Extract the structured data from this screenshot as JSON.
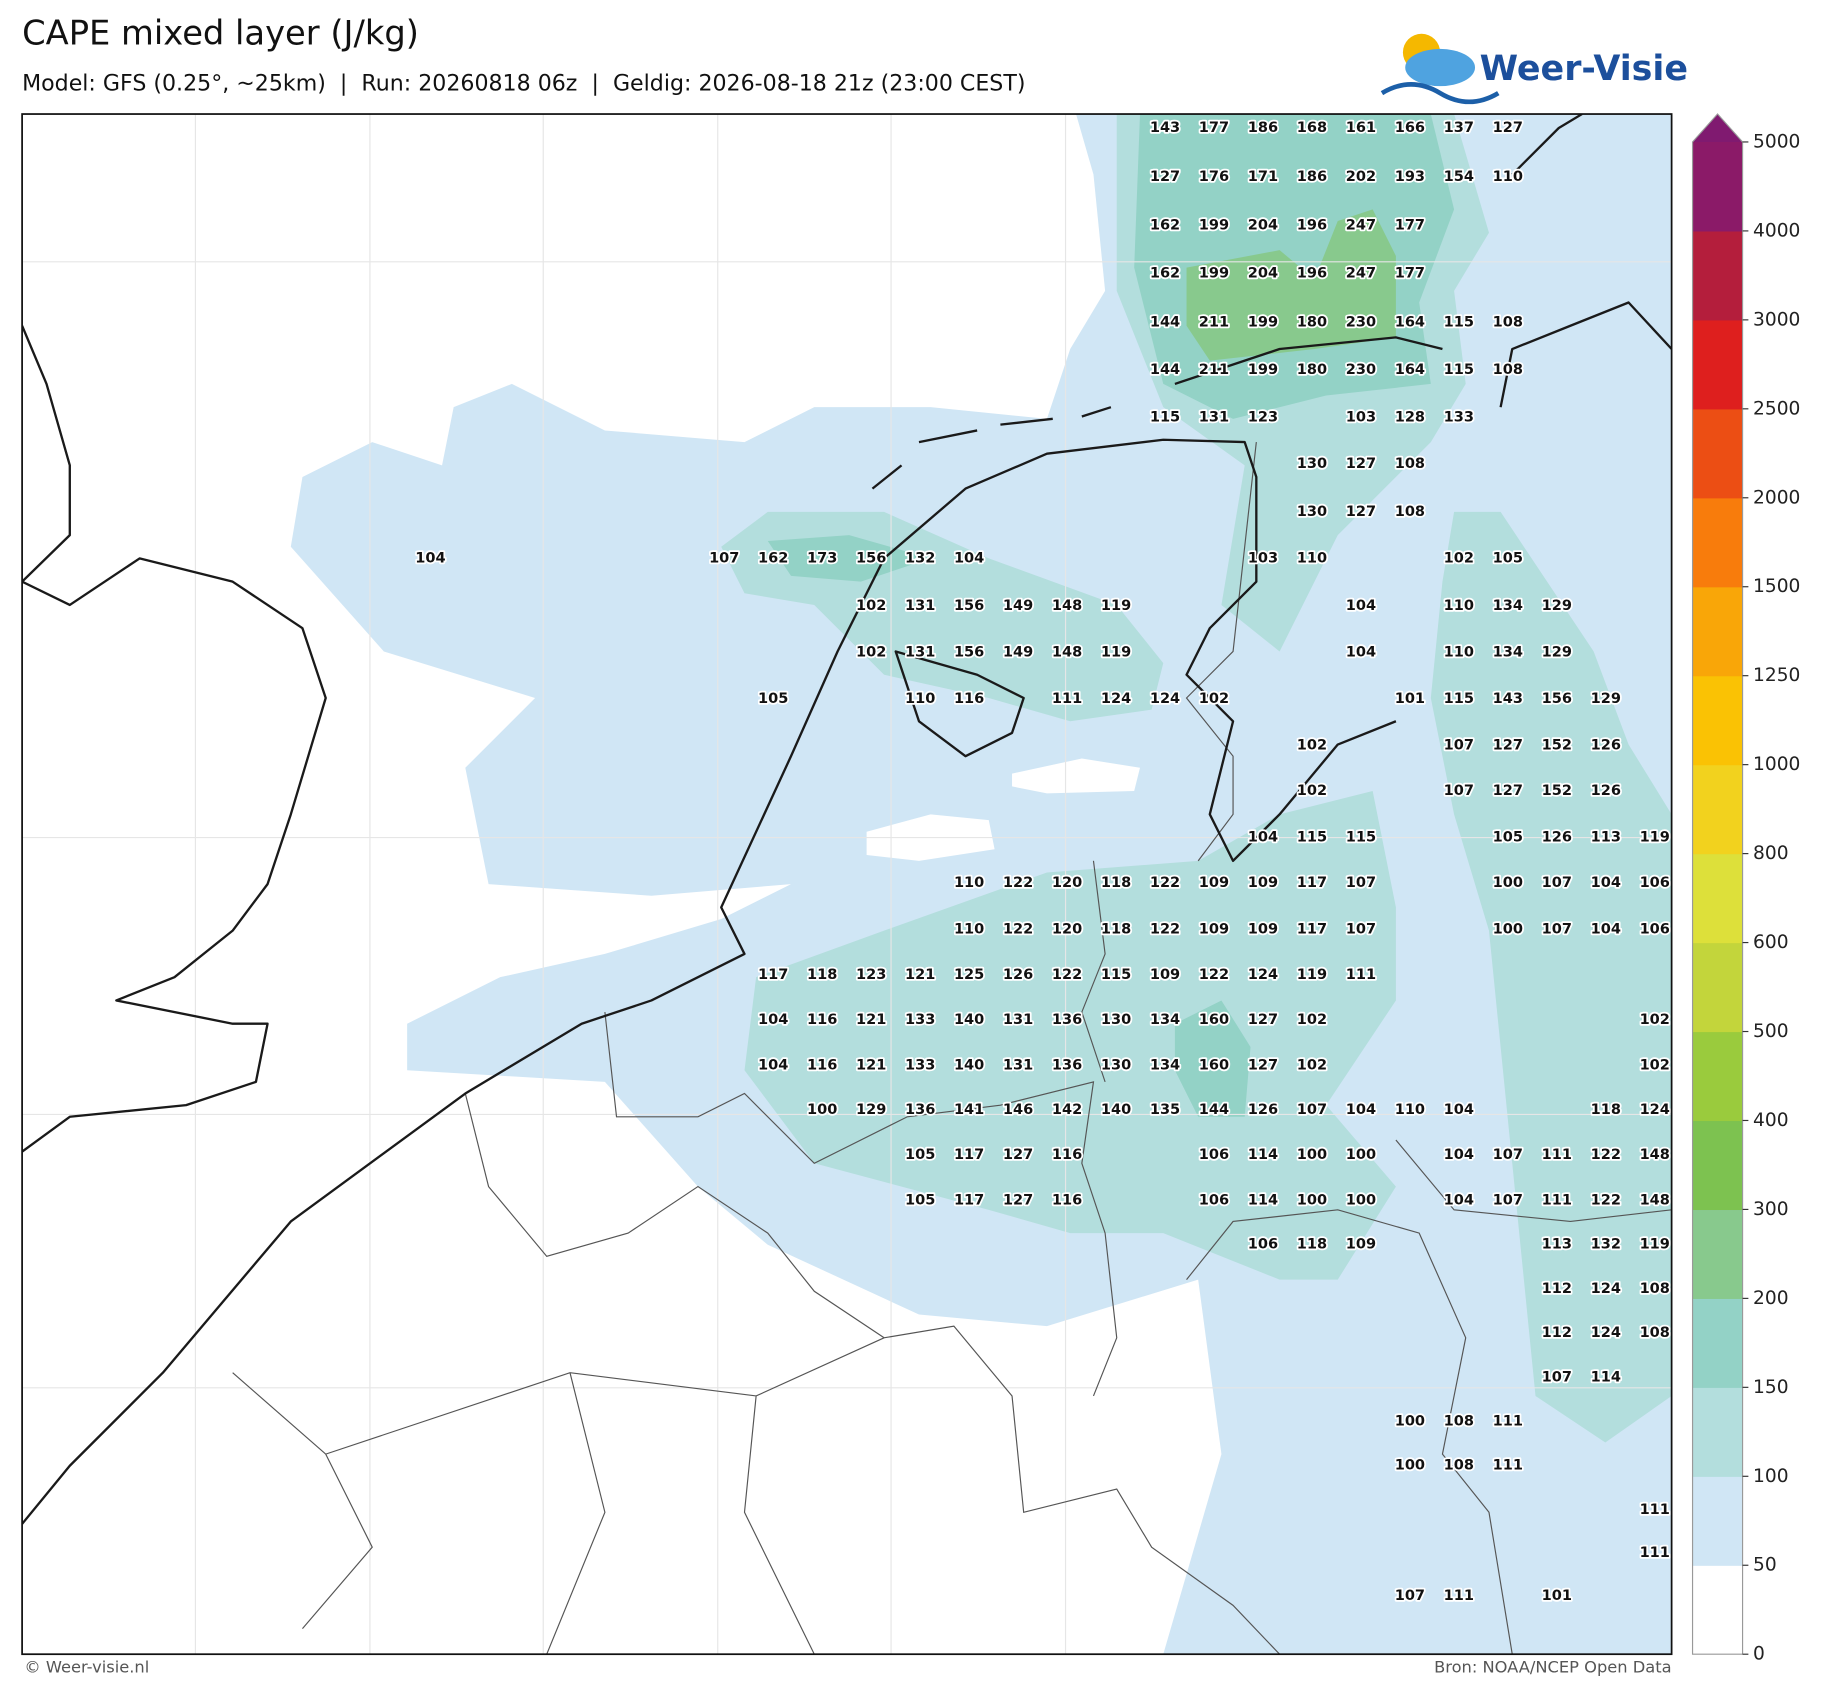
{
  "header": {
    "title": "CAPE mixed layer (J/kg)",
    "subtitle": "Model: GFS (0.25°, ~25km)  |  Run: 20260818 06z  |  Geldig: 2026-08-18 21z (23:00 CEST)"
  },
  "logo": {
    "name": "Weer-Visie"
  },
  "map": {
    "values": [
      [
        null,
        null,
        null,
        null,
        null,
        null,
        null,
        null,
        null,
        null,
        null,
        null,
        null,
        null,
        null,
        143,
        177,
        186,
        168,
        161,
        166,
        137,
        127,
        null,
        null,
        null
      ],
      [
        null,
        null,
        null,
        null,
        null,
        null,
        null,
        null,
        null,
        null,
        null,
        null,
        null,
        null,
        null,
        127,
        176,
        171,
        186,
        202,
        193,
        154,
        110,
        null,
        null,
        null
      ],
      [
        null,
        null,
        null,
        null,
        null,
        null,
        null,
        null,
        null,
        null,
        null,
        null,
        null,
        null,
        null,
        162,
        199,
        204,
        196,
        247,
        177,
        null,
        null,
        null,
        null,
        null
      ],
      [
        null,
        null,
        null,
        null,
        null,
        null,
        null,
        null,
        null,
        null,
        null,
        null,
        null,
        null,
        null,
        162,
        199,
        204,
        196,
        247,
        177,
        null,
        null,
        null,
        null,
        null
      ],
      [
        null,
        null,
        null,
        null,
        null,
        null,
        null,
        null,
        null,
        null,
        null,
        null,
        null,
        null,
        null,
        144,
        211,
        199,
        180,
        230,
        164,
        115,
        108,
        null,
        null,
        null
      ],
      [
        null,
        null,
        null,
        null,
        null,
        null,
        null,
        null,
        null,
        null,
        null,
        null,
        null,
        null,
        null,
        144,
        211,
        199,
        180,
        230,
        164,
        115,
        108,
        null,
        null,
        null
      ],
      [
        null,
        null,
        null,
        null,
        null,
        null,
        null,
        null,
        null,
        null,
        null,
        null,
        null,
        null,
        null,
        115,
        131,
        123,
        null,
        103,
        128,
        133,
        null,
        null,
        null,
        null
      ],
      [
        null,
        null,
        null,
        null,
        null,
        null,
        null,
        null,
        null,
        null,
        null,
        null,
        null,
        null,
        null,
        null,
        null,
        null,
        130,
        127,
        108,
        null,
        null,
        null,
        null,
        null
      ],
      [
        null,
        null,
        null,
        null,
        null,
        null,
        null,
        null,
        null,
        null,
        null,
        null,
        null,
        null,
        null,
        null,
        null,
        null,
        130,
        127,
        108,
        null,
        null,
        null,
        null,
        null
      ],
      [
        104,
        null,
        null,
        null,
        null,
        null,
        107,
        162,
        173,
        156,
        132,
        104,
        null,
        null,
        null,
        null,
        null,
        103,
        110,
        null,
        null,
        102,
        105,
        null,
        null,
        null
      ],
      [
        null,
        null,
        null,
        null,
        null,
        null,
        null,
        null,
        null,
        102,
        131,
        156,
        149,
        148,
        119,
        null,
        null,
        null,
        null,
        104,
        null,
        110,
        134,
        129,
        null,
        null
      ],
      [
        null,
        null,
        null,
        null,
        null,
        null,
        null,
        null,
        null,
        102,
        131,
        156,
        149,
        148,
        119,
        null,
        null,
        null,
        null,
        104,
        null,
        110,
        134,
        129,
        null,
        null
      ],
      [
        null,
        null,
        null,
        null,
        null,
        null,
        null,
        105,
        null,
        null,
        110,
        116,
        null,
        111,
        124,
        124,
        102,
        null,
        null,
        null,
        101,
        115,
        143,
        156,
        129,
        null
      ],
      [
        null,
        null,
        null,
        null,
        null,
        null,
        null,
        null,
        null,
        null,
        null,
        null,
        null,
        null,
        null,
        null,
        null,
        null,
        102,
        null,
        null,
        107,
        127,
        152,
        126,
        null
      ],
      [
        null,
        null,
        null,
        null,
        null,
        null,
        null,
        null,
        null,
        null,
        null,
        null,
        null,
        null,
        null,
        null,
        null,
        null,
        102,
        null,
        null,
        107,
        127,
        152,
        126,
        null
      ],
      [
        null,
        null,
        null,
        null,
        null,
        null,
        null,
        null,
        null,
        null,
        null,
        null,
        null,
        null,
        null,
        null,
        null,
        104,
        115,
        115,
        null,
        null,
        105,
        126,
        113,
        119
      ],
      [
        null,
        null,
        null,
        null,
        null,
        null,
        null,
        null,
        null,
        null,
        null,
        110,
        122,
        120,
        118,
        122,
        109,
        109,
        117,
        107,
        null,
        null,
        100,
        107,
        104,
        106
      ],
      [
        null,
        null,
        null,
        null,
        null,
        null,
        null,
        null,
        null,
        null,
        null,
        110,
        122,
        120,
        118,
        122,
        109,
        109,
        117,
        107,
        null,
        null,
        100,
        107,
        104,
        106
      ],
      [
        null,
        null,
        null,
        null,
        null,
        null,
        null,
        117,
        118,
        123,
        121,
        125,
        126,
        122,
        115,
        109,
        122,
        124,
        119,
        111,
        null,
        null,
        null,
        null,
        null,
        null
      ],
      [
        null,
        null,
        null,
        null,
        null,
        null,
        null,
        104,
        116,
        121,
        133,
        140,
        131,
        136,
        130,
        134,
        160,
        127,
        102,
        null,
        null,
        null,
        null,
        null,
        null,
        102
      ],
      [
        null,
        null,
        null,
        null,
        null,
        null,
        null,
        104,
        116,
        121,
        133,
        140,
        131,
        136,
        130,
        134,
        160,
        127,
        102,
        null,
        null,
        null,
        null,
        null,
        null,
        102
      ],
      [
        null,
        null,
        null,
        null,
        null,
        null,
        null,
        null,
        100,
        129,
        136,
        141,
        146,
        142,
        140,
        135,
        144,
        126,
        107,
        104,
        110,
        104,
        null,
        null,
        118,
        124
      ],
      [
        null,
        null,
        null,
        null,
        null,
        null,
        null,
        null,
        null,
        null,
        105,
        117,
        127,
        116,
        null,
        null,
        106,
        114,
        100,
        100,
        null,
        104,
        107,
        111,
        122,
        148
      ],
      [
        null,
        null,
        null,
        null,
        null,
        null,
        null,
        null,
        null,
        null,
        105,
        117,
        127,
        116,
        null,
        null,
        106,
        114,
        100,
        100,
        null,
        104,
        107,
        111,
        122,
        148
      ],
      [
        null,
        null,
        null,
        null,
        null,
        null,
        null,
        null,
        null,
        null,
        null,
        null,
        null,
        null,
        null,
        null,
        null,
        106,
        118,
        109,
        null,
        null,
        null,
        113,
        132,
        119
      ],
      [
        null,
        null,
        null,
        null,
        null,
        null,
        null,
        null,
        null,
        null,
        null,
        null,
        null,
        null,
        null,
        null,
        null,
        null,
        null,
        null,
        null,
        null,
        null,
        112,
        124,
        108
      ],
      [
        null,
        null,
        null,
        null,
        null,
        null,
        null,
        null,
        null,
        null,
        null,
        null,
        null,
        null,
        null,
        null,
        null,
        null,
        null,
        null,
        null,
        null,
        null,
        112,
        124,
        108
      ],
      [
        null,
        null,
        null,
        null,
        null,
        null,
        null,
        null,
        null,
        null,
        null,
        null,
        null,
        null,
        null,
        null,
        null,
        null,
        null,
        null,
        null,
        null,
        null,
        107,
        114,
        null
      ],
      [
        null,
        null,
        null,
        null,
        null,
        null,
        null,
        null,
        null,
        null,
        null,
        null,
        null,
        null,
        null,
        null,
        null,
        null,
        null,
        null,
        100,
        108,
        111,
        null,
        null,
        null
      ],
      [
        null,
        null,
        null,
        null,
        null,
        null,
        null,
        null,
        null,
        null,
        null,
        null,
        null,
        null,
        null,
        null,
        null,
        null,
        null,
        null,
        100,
        108,
        111,
        null,
        null,
        null
      ],
      [
        null,
        null,
        null,
        null,
        null,
        null,
        null,
        null,
        null,
        null,
        null,
        null,
        null,
        null,
        null,
        null,
        null,
        null,
        null,
        null,
        null,
        null,
        null,
        null,
        null,
        111
      ],
      [
        null,
        null,
        null,
        null,
        null,
        null,
        null,
        null,
        null,
        null,
        null,
        null,
        null,
        null,
        null,
        null,
        null,
        null,
        null,
        null,
        null,
        null,
        null,
        null,
        null,
        111
      ],
      [
        null,
        null,
        null,
        null,
        null,
        null,
        null,
        null,
        null,
        null,
        null,
        null,
        null,
        null,
        null,
        null,
        null,
        null,
        null,
        null,
        107,
        111,
        null,
        101,
        null,
        null
      ]
    ]
  },
  "colorbar": {
    "ticks": [
      0,
      50,
      100,
      150,
      200,
      300,
      400,
      500,
      600,
      800,
      1000,
      1250,
      1500,
      2000,
      2500,
      3000,
      4000,
      5000
    ],
    "colors": [
      "#ffffff",
      "#d0e6f5",
      "#b3dedd",
      "#93d2c6",
      "#88c98d",
      "#7dc250",
      "#9acb3d",
      "#c3d53b",
      "#dde03a",
      "#f2d21e",
      "#fac204",
      "#f9a608",
      "#f87c0c",
      "#ec4e14",
      "#de1f1e",
      "#b41e3c",
      "#8b1a68"
    ],
    "extend_color": "#801a70"
  },
  "footer": {
    "left": "© Weer-visie.nl",
    "right": "Bron: NOAA/NCEP Open Data"
  }
}
